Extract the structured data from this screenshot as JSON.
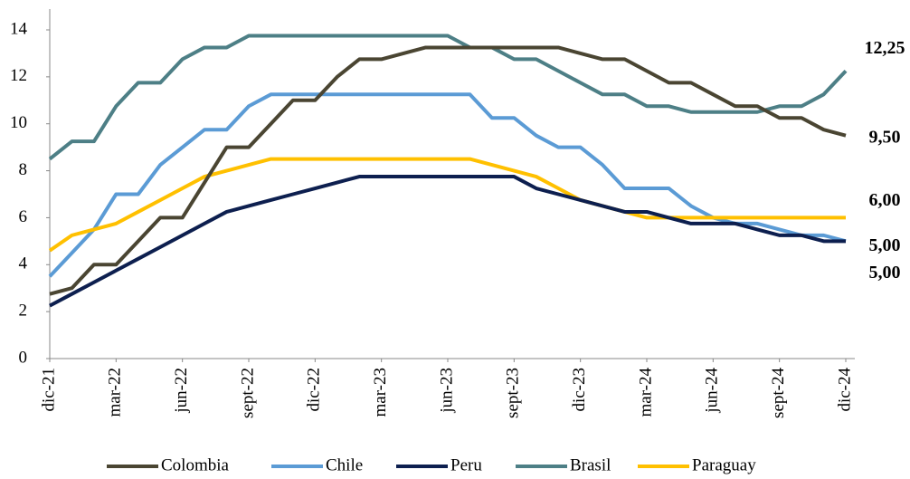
{
  "chart_data": {
    "type": "line",
    "categories": [
      "dic-21",
      null,
      null,
      "mar-22",
      null,
      null,
      "jun-22",
      null,
      null,
      "sept-22",
      null,
      null,
      "dic-22",
      null,
      null,
      "mar-23",
      null,
      null,
      "jun-23",
      null,
      null,
      "sept-23",
      null,
      null,
      "dic-23",
      null,
      null,
      "mar-24",
      null,
      null,
      "jun-24",
      null,
      null,
      "sept-24",
      null,
      null,
      "dic-24"
    ],
    "ylim": [
      0,
      14
    ],
    "yticks": [
      0,
      2,
      4,
      6,
      8,
      10,
      12,
      14
    ],
    "legend": "bottom",
    "series": [
      {
        "name": "Colombia",
        "color": "#4a4532",
        "end_label": "9,50",
        "label_color": "#4a4532",
        "values": [
          2.75,
          3.0,
          4.0,
          4.0,
          5.0,
          6.0,
          6.0,
          7.5,
          9.0,
          9.0,
          10.0,
          11.0,
          11.0,
          12.0,
          12.75,
          12.75,
          13.0,
          13.25,
          13.25,
          13.25,
          13.25,
          13.25,
          13.25,
          13.25,
          13.0,
          12.75,
          12.75,
          12.25,
          11.75,
          11.75,
          11.25,
          10.75,
          10.75,
          10.25,
          10.25,
          9.75,
          9.5
        ]
      },
      {
        "name": "Chile",
        "color": "#5b9bd5",
        "end_label": "5,00",
        "label_color": "#262626",
        "values": [
          3.5,
          4.5,
          5.5,
          7.0,
          7.0,
          8.25,
          9.0,
          9.75,
          9.75,
          10.75,
          11.25,
          11.25,
          11.25,
          11.25,
          11.25,
          11.25,
          11.25,
          11.25,
          11.25,
          11.25,
          10.25,
          10.25,
          9.5,
          9.0,
          9.0,
          8.25,
          7.25,
          7.25,
          7.25,
          6.5,
          6.0,
          5.75,
          5.75,
          5.5,
          5.25,
          5.25,
          5.0
        ]
      },
      {
        "name": "Peru",
        "color": "#0d1f4f",
        "end_label": "5,00",
        "label_color": "#0d1f4f",
        "values": [
          2.25,
          2.75,
          3.25,
          3.75,
          4.25,
          4.75,
          5.25,
          5.75,
          6.25,
          6.5,
          6.75,
          7.0,
          7.25,
          7.5,
          7.75,
          7.75,
          7.75,
          7.75,
          7.75,
          7.75,
          7.75,
          7.75,
          7.25,
          7.0,
          6.75,
          6.5,
          6.25,
          6.25,
          6.0,
          5.75,
          5.75,
          5.75,
          5.5,
          5.25,
          5.25,
          5.0,
          5.0
        ]
      },
      {
        "name": "Brasil",
        "color": "#4d7f86",
        "end_label": "12,25",
        "label_color": "#4d7f86",
        "values": [
          8.5,
          9.25,
          9.25,
          10.75,
          11.75,
          11.75,
          12.75,
          13.25,
          13.25,
          13.75,
          13.75,
          13.75,
          13.75,
          13.75,
          13.75,
          13.75,
          13.75,
          13.75,
          13.75,
          13.25,
          13.25,
          12.75,
          12.75,
          12.25,
          11.75,
          11.25,
          11.25,
          10.75,
          10.75,
          10.5,
          10.5,
          10.5,
          10.5,
          10.75,
          10.75,
          11.25,
          12.25
        ]
      },
      {
        "name": "Paraguay",
        "color": "#ffc000",
        "end_label": "6,00",
        "label_color": "#ffc000",
        "values": [
          4.6,
          5.25,
          5.5,
          5.75,
          6.25,
          6.75,
          7.25,
          7.75,
          8.0,
          8.25,
          8.5,
          8.5,
          8.5,
          8.5,
          8.5,
          8.5,
          8.5,
          8.5,
          8.5,
          8.5,
          8.25,
          8.0,
          7.75,
          7.25,
          6.75,
          6.5,
          6.25,
          6.0,
          6.0,
          6.0,
          6.0,
          6.0,
          6.0,
          6.0,
          6.0,
          6.0,
          6.0
        ]
      }
    ]
  }
}
